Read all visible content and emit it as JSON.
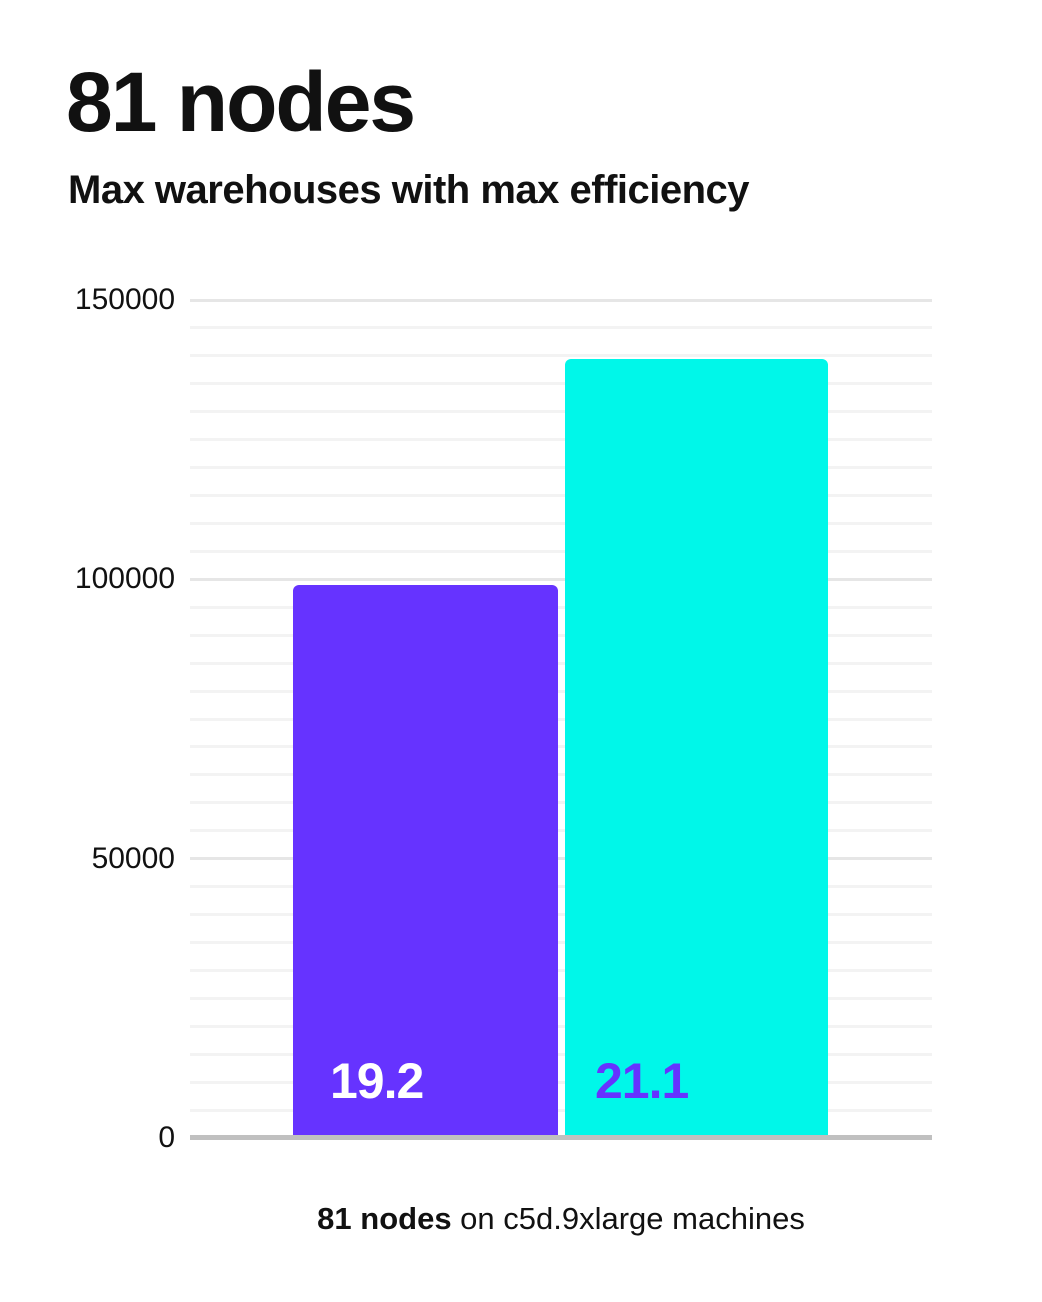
{
  "header": {
    "title": "81 nodes",
    "subtitle": "Max warehouses with max efficiency"
  },
  "caption": {
    "bold": "81 nodes",
    "rest": " on c5d.9xlarge machines"
  },
  "colors": {
    "background": "#ffffff",
    "text": "#111111",
    "bar_colors": [
      "#6633ff",
      "#00f7e9"
    ],
    "bar_label_colors": [
      "#ffffff",
      "#6633ff"
    ],
    "axis_line": "#c0c0c0",
    "gridline_minor": "#f3f3f3",
    "gridline_major": "#e6e6e6"
  },
  "chart_data": {
    "type": "bar",
    "title": "81 nodes",
    "subtitle": "Max warehouses with max efficiency",
    "categories": [
      "19.2",
      "21.1"
    ],
    "values": [
      99000,
      139500
    ],
    "bar_value_labels": [
      "19.2",
      "21.1"
    ],
    "xlabel": "81 nodes on c5d.9xlarge machines",
    "ylabel": "",
    "ylim": [
      0,
      150000
    ],
    "yticks": [
      0,
      50000,
      100000,
      150000
    ],
    "ytick_labels": [
      "0",
      "50000",
      "100000",
      "150000"
    ],
    "gridline_step": 5000,
    "grid": true,
    "legend_position": "none"
  }
}
